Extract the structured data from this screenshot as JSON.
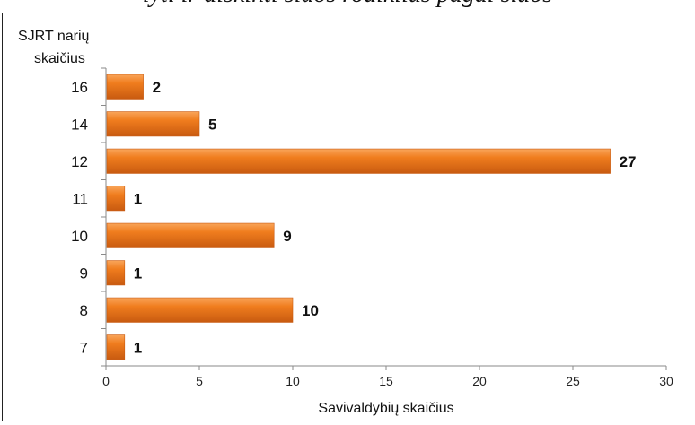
{
  "clipped_top_text": "lyti ir aiškinti šiuos rodiklius pagal šiuos",
  "chart_data": {
    "type": "bar",
    "orientation": "horizontal",
    "categories": [
      "7",
      "8",
      "9",
      "10",
      "11",
      "12",
      "14",
      "16"
    ],
    "values": [
      1,
      10,
      1,
      9,
      1,
      27,
      5,
      2
    ],
    "ylabel_lines": [
      "SJRT narių",
      "skaičius"
    ],
    "xlabel": "Savivaldybių skaičius",
    "xlim": [
      0,
      30
    ],
    "xticks": [
      "0",
      "5",
      "10",
      "15",
      "20",
      "25",
      "30"
    ],
    "grid": false,
    "legend": "none",
    "bar_color": "#F07D1E",
    "bar_dark_color": "#C85A10",
    "bar_light_color": "#F9A55A"
  }
}
